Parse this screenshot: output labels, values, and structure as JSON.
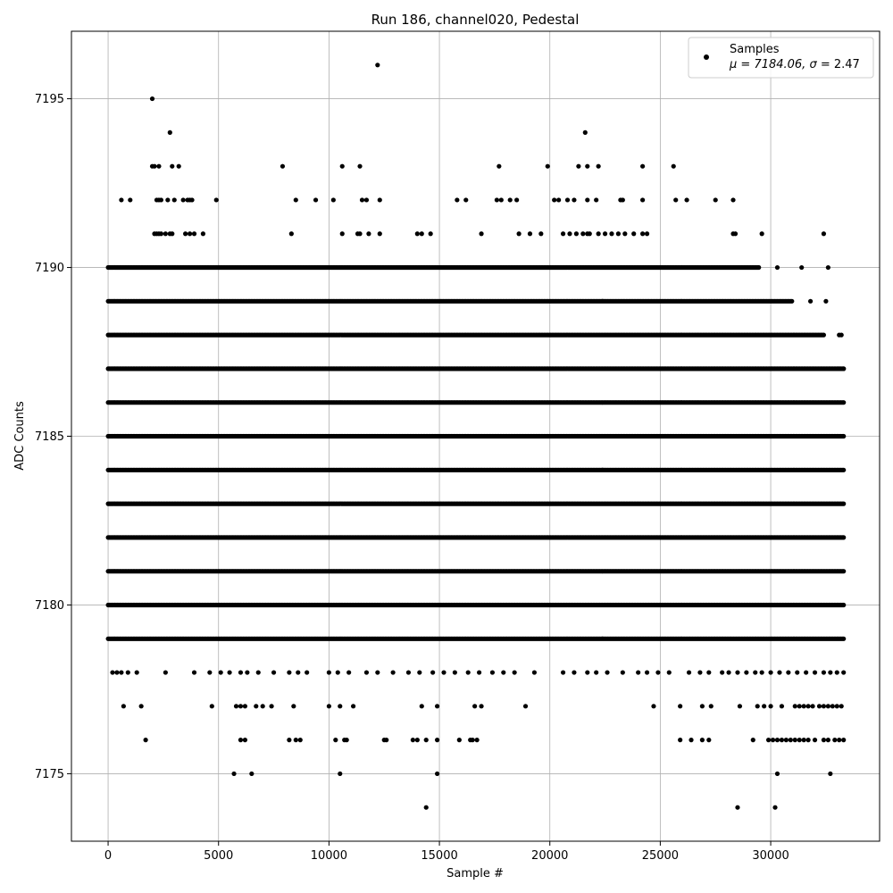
{
  "chart_data": {
    "type": "scatter",
    "title": "Run 186, channel020, Pedestal",
    "xlabel": "Sample #",
    "ylabel": "ADC Counts",
    "xlim": [
      -1660,
      34930
    ],
    "ylim": [
      7173,
      7197
    ],
    "x_ticks": [
      0,
      5000,
      10000,
      15000,
      20000,
      25000,
      30000
    ],
    "y_ticks": [
      7175,
      7180,
      7185,
      7190,
      7195
    ],
    "grid": true,
    "legend_position": "top-right",
    "legend": {
      "label": "Samples",
      "stats_prefix": "μ = 7184.06, ",
      "sigma_symbol": "σ",
      "stats_suffix": " = 2.47"
    },
    "marker_color": "#000000",
    "series": [
      {
        "name": "Samples",
        "mean": 7184.06,
        "sigma": 2.47,
        "n_samples": 33300,
        "dense_levels": [
          {
            "y": 7179,
            "x": [
              0,
              33300
            ]
          },
          {
            "y": 7180,
            "x": [
              0,
              33300
            ]
          },
          {
            "y": 7181,
            "x": [
              0,
              33300
            ]
          },
          {
            "y": 7182,
            "x": [
              0,
              33300
            ]
          },
          {
            "y": 7183,
            "x": [
              0,
              33300
            ]
          },
          {
            "y": 7184,
            "x": [
              0,
              33300
            ]
          },
          {
            "y": 7185,
            "x": [
              0,
              33300
            ]
          },
          {
            "y": 7186,
            "x": [
              0,
              33300
            ]
          },
          {
            "y": 7187,
            "x": [
              0,
              33300
            ]
          },
          {
            "y": 7188,
            "x": [
              0,
              32400
            ]
          },
          {
            "y": 7189,
            "x": [
              0,
              31000
            ]
          },
          {
            "y": 7190,
            "x": [
              0,
              29500
            ]
          }
        ],
        "points": [
          [
            2000,
            7195
          ],
          [
            12200,
            7196
          ],
          [
            2800,
            7194
          ],
          [
            21600,
            7194
          ],
          [
            2000,
            7193
          ],
          [
            2100,
            7193
          ],
          [
            2300,
            7193
          ],
          [
            2900,
            7193
          ],
          [
            3200,
            7193
          ],
          [
            7900,
            7193
          ],
          [
            10600,
            7193
          ],
          [
            11400,
            7193
          ],
          [
            17700,
            7193
          ],
          [
            19900,
            7193
          ],
          [
            21300,
            7193
          ],
          [
            21700,
            7193
          ],
          [
            22200,
            7193
          ],
          [
            24200,
            7193
          ],
          [
            25600,
            7193
          ],
          [
            600,
            7192
          ],
          [
            1000,
            7192
          ],
          [
            2200,
            7192
          ],
          [
            2300,
            7192
          ],
          [
            2400,
            7192
          ],
          [
            2700,
            7192
          ],
          [
            3000,
            7192
          ],
          [
            3400,
            7192
          ],
          [
            3600,
            7192
          ],
          [
            3700,
            7192
          ],
          [
            3800,
            7192
          ],
          [
            4900,
            7192
          ],
          [
            8500,
            7192
          ],
          [
            9400,
            7192
          ],
          [
            10200,
            7192
          ],
          [
            11500,
            7192
          ],
          [
            11700,
            7192
          ],
          [
            12300,
            7192
          ],
          [
            15800,
            7192
          ],
          [
            16200,
            7192
          ],
          [
            17600,
            7192
          ],
          [
            17800,
            7192
          ],
          [
            18200,
            7192
          ],
          [
            18500,
            7192
          ],
          [
            20200,
            7192
          ],
          [
            20400,
            7192
          ],
          [
            20800,
            7192
          ],
          [
            21100,
            7192
          ],
          [
            21700,
            7192
          ],
          [
            22100,
            7192
          ],
          [
            23200,
            7192
          ],
          [
            23300,
            7192
          ],
          [
            24200,
            7192
          ],
          [
            25700,
            7192
          ],
          [
            26200,
            7192
          ],
          [
            27500,
            7192
          ],
          [
            28300,
            7192
          ],
          [
            2100,
            7191
          ],
          [
            2200,
            7191
          ],
          [
            2300,
            7191
          ],
          [
            2400,
            7191
          ],
          [
            2600,
            7191
          ],
          [
            2800,
            7191
          ],
          [
            2900,
            7191
          ],
          [
            3500,
            7191
          ],
          [
            3700,
            7191
          ],
          [
            3900,
            7191
          ],
          [
            4300,
            7191
          ],
          [
            8300,
            7191
          ],
          [
            10600,
            7191
          ],
          [
            11300,
            7191
          ],
          [
            11400,
            7191
          ],
          [
            11800,
            7191
          ],
          [
            12300,
            7191
          ],
          [
            14000,
            7191
          ],
          [
            14200,
            7191
          ],
          [
            14600,
            7191
          ],
          [
            16900,
            7191
          ],
          [
            18600,
            7191
          ],
          [
            19100,
            7191
          ],
          [
            19600,
            7191
          ],
          [
            20600,
            7191
          ],
          [
            20900,
            7191
          ],
          [
            21200,
            7191
          ],
          [
            21500,
            7191
          ],
          [
            21700,
            7191
          ],
          [
            21800,
            7191
          ],
          [
            22200,
            7191
          ],
          [
            22500,
            7191
          ],
          [
            22800,
            7191
          ],
          [
            23100,
            7191
          ],
          [
            23400,
            7191
          ],
          [
            23800,
            7191
          ],
          [
            24200,
            7191
          ],
          [
            24400,
            7191
          ],
          [
            28300,
            7191
          ],
          [
            28400,
            7191
          ],
          [
            29600,
            7191
          ],
          [
            32400,
            7191
          ],
          [
            30300,
            7190
          ],
          [
            31400,
            7190
          ],
          [
            32600,
            7190
          ],
          [
            31800,
            7189
          ],
          [
            32500,
            7189
          ],
          [
            33200,
            7188
          ],
          [
            33100,
            7188
          ],
          [
            33100,
            7187
          ],
          [
            33300,
            7187
          ],
          [
            200,
            7178
          ],
          [
            400,
            7178
          ],
          [
            600,
            7178
          ],
          [
            900,
            7178
          ],
          [
            1300,
            7178
          ],
          [
            2600,
            7178
          ],
          [
            3900,
            7178
          ],
          [
            4600,
            7178
          ],
          [
            5100,
            7178
          ],
          [
            5500,
            7178
          ],
          [
            6000,
            7178
          ],
          [
            6300,
            7178
          ],
          [
            6800,
            7178
          ],
          [
            7500,
            7178
          ],
          [
            8200,
            7178
          ],
          [
            8600,
            7178
          ],
          [
            9000,
            7178
          ],
          [
            10000,
            7178
          ],
          [
            10400,
            7178
          ],
          [
            10900,
            7178
          ],
          [
            11700,
            7178
          ],
          [
            12200,
            7178
          ],
          [
            12900,
            7178
          ],
          [
            13600,
            7178
          ],
          [
            14100,
            7178
          ],
          [
            14700,
            7178
          ],
          [
            15200,
            7178
          ],
          [
            15700,
            7178
          ],
          [
            16300,
            7178
          ],
          [
            16800,
            7178
          ],
          [
            17400,
            7178
          ],
          [
            17900,
            7178
          ],
          [
            18400,
            7178
          ],
          [
            19300,
            7178
          ],
          [
            20600,
            7178
          ],
          [
            21100,
            7178
          ],
          [
            21700,
            7178
          ],
          [
            22100,
            7178
          ],
          [
            22600,
            7178
          ],
          [
            23300,
            7178
          ],
          [
            24000,
            7178
          ],
          [
            24400,
            7178
          ],
          [
            24900,
            7178
          ],
          [
            25400,
            7178
          ],
          [
            26300,
            7178
          ],
          [
            26800,
            7178
          ],
          [
            27200,
            7178
          ],
          [
            27800,
            7178
          ],
          [
            28100,
            7178
          ],
          [
            28500,
            7178
          ],
          [
            28900,
            7178
          ],
          [
            29300,
            7178
          ],
          [
            29600,
            7178
          ],
          [
            30000,
            7178
          ],
          [
            30400,
            7178
          ],
          [
            30800,
            7178
          ],
          [
            31200,
            7178
          ],
          [
            31600,
            7178
          ],
          [
            32000,
            7178
          ],
          [
            32400,
            7178
          ],
          [
            32700,
            7178
          ],
          [
            33000,
            7178
          ],
          [
            33300,
            7178
          ],
          [
            700,
            7177
          ],
          [
            1500,
            7177
          ],
          [
            4700,
            7177
          ],
          [
            5800,
            7177
          ],
          [
            6000,
            7177
          ],
          [
            6200,
            7177
          ],
          [
            6700,
            7177
          ],
          [
            7000,
            7177
          ],
          [
            7400,
            7177
          ],
          [
            8400,
            7177
          ],
          [
            10000,
            7177
          ],
          [
            10500,
            7177
          ],
          [
            11100,
            7177
          ],
          [
            14200,
            7177
          ],
          [
            14900,
            7177
          ],
          [
            16600,
            7177
          ],
          [
            16900,
            7177
          ],
          [
            18900,
            7177
          ],
          [
            24700,
            7177
          ],
          [
            25900,
            7177
          ],
          [
            26900,
            7177
          ],
          [
            27300,
            7177
          ],
          [
            28600,
            7177
          ],
          [
            29400,
            7177
          ],
          [
            29700,
            7177
          ],
          [
            30000,
            7177
          ],
          [
            30500,
            7177
          ],
          [
            31100,
            7177
          ],
          [
            31300,
            7177
          ],
          [
            31500,
            7177
          ],
          [
            31700,
            7177
          ],
          [
            31900,
            7177
          ],
          [
            32200,
            7177
          ],
          [
            32400,
            7177
          ],
          [
            32600,
            7177
          ],
          [
            32800,
            7177
          ],
          [
            33000,
            7177
          ],
          [
            33200,
            7177
          ],
          [
            1700,
            7176
          ],
          [
            6000,
            7176
          ],
          [
            6200,
            7176
          ],
          [
            8200,
            7176
          ],
          [
            8500,
            7176
          ],
          [
            8700,
            7176
          ],
          [
            10300,
            7176
          ],
          [
            10700,
            7176
          ],
          [
            10800,
            7176
          ],
          [
            12500,
            7176
          ],
          [
            12600,
            7176
          ],
          [
            13800,
            7176
          ],
          [
            14000,
            7176
          ],
          [
            14400,
            7176
          ],
          [
            14900,
            7176
          ],
          [
            15900,
            7176
          ],
          [
            16400,
            7176
          ],
          [
            16500,
            7176
          ],
          [
            16700,
            7176
          ],
          [
            25900,
            7176
          ],
          [
            26400,
            7176
          ],
          [
            26900,
            7176
          ],
          [
            27200,
            7176
          ],
          [
            29200,
            7176
          ],
          [
            29900,
            7176
          ],
          [
            30100,
            7176
          ],
          [
            30300,
            7176
          ],
          [
            30500,
            7176
          ],
          [
            30700,
            7176
          ],
          [
            30900,
            7176
          ],
          [
            31100,
            7176
          ],
          [
            31300,
            7176
          ],
          [
            31500,
            7176
          ],
          [
            31700,
            7176
          ],
          [
            32000,
            7176
          ],
          [
            32400,
            7176
          ],
          [
            32600,
            7176
          ],
          [
            32900,
            7176
          ],
          [
            33100,
            7176
          ],
          [
            33300,
            7176
          ],
          [
            5700,
            7175
          ],
          [
            6500,
            7175
          ],
          [
            10500,
            7175
          ],
          [
            14900,
            7175
          ],
          [
            30300,
            7175
          ],
          [
            32700,
            7175
          ],
          [
            14400,
            7174
          ],
          [
            28500,
            7174
          ],
          [
            30200,
            7174
          ]
        ]
      }
    ]
  }
}
